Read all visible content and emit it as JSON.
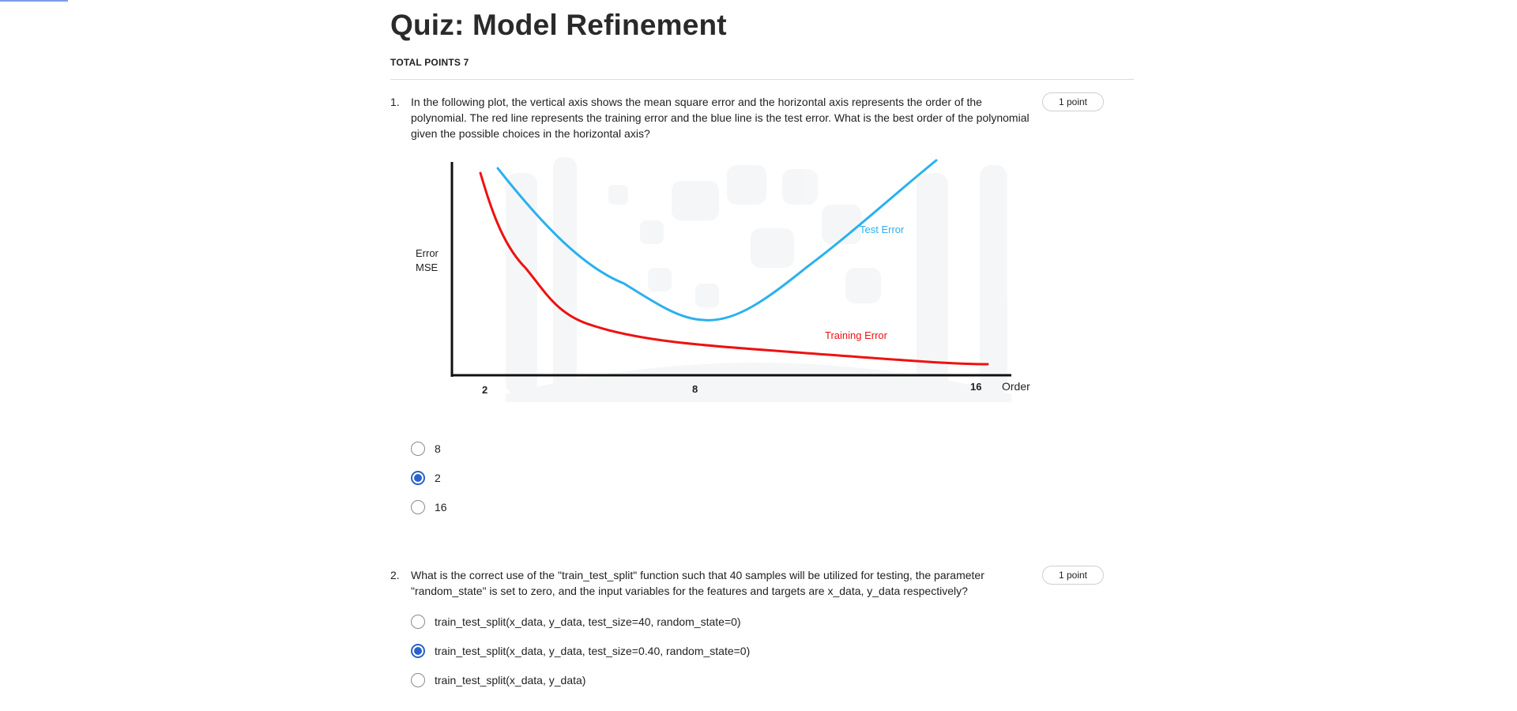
{
  "quiz": {
    "title": "Quiz: Model Refinement",
    "total_points": "TOTAL POINTS 7"
  },
  "questions": [
    {
      "number": "1.",
      "text": "In the following plot, the vertical axis shows the mean square error and the horizontal axis represents the order of the polynomial. The red line represents the training error and the blue line is the test error. What is the best order of the polynomial given the possible choices in the horizontal axis?",
      "points": "1 point",
      "options": [
        {
          "label": "8",
          "selected": false
        },
        {
          "label": "2",
          "selected": true
        },
        {
          "label": "16",
          "selected": false
        }
      ]
    },
    {
      "number": "2.",
      "text": "What is the correct use of the \"train_test_split\" function such that 40 samples will be utilized for testing, the parameter \"random_state\" is set to zero, and the input variables for the features and targets are x_data, y_data respectively?",
      "points": "1 point",
      "options": [
        {
          "label": "train_test_split(x_data, y_data, test_size=40, random_state=0)",
          "selected": false
        },
        {
          "label": "train_test_split(x_data, y_data, test_size=0.40, random_state=0)",
          "selected": true
        },
        {
          "label": "train_test_split(x_data, y_data)",
          "selected": false
        }
      ]
    }
  ],
  "chart_data": {
    "type": "line",
    "ylabel_line1": "Error",
    "ylabel_line2": "MSE",
    "xlabel": "Order",
    "x_ticks": [
      "2",
      "8",
      "16"
    ],
    "series": [
      {
        "name": "Test Error",
        "color": "#2bb0ee"
      },
      {
        "name": "Training Error",
        "color": "#ee1111"
      }
    ],
    "axis_color": "#111111"
  },
  "colors": {
    "accent": "#2a62c9",
    "test_error": "#2bb0ee",
    "training_error": "#ee1111"
  }
}
